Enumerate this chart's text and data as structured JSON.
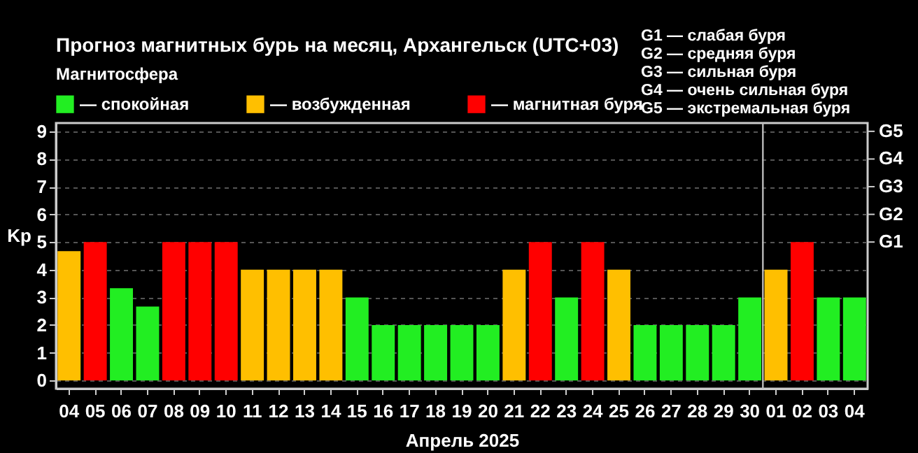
{
  "chart_data": {
    "type": "bar",
    "title": "Прогноз магнитных бурь на месяц, Архангельск (UTC+03)",
    "xlabel": "Апрель 2025",
    "ylabel": "Kp",
    "legend_title": "Магнитосфера",
    "legend": "top left",
    "grid": "y",
    "line_style": "dashed",
    "categories": [
      "04",
      "05",
      "06",
      "07",
      "08",
      "09",
      "10",
      "11",
      "12",
      "13",
      "14",
      "15",
      "16",
      "17",
      "18",
      "19",
      "20",
      "21",
      "22",
      "23",
      "24",
      "25",
      "26",
      "27",
      "28",
      "29",
      "30",
      "01",
      "02",
      "03",
      "04"
    ],
    "series": [
      {
        "name": "— спокойная",
        "color": "#22ee22",
        "values": [
          null,
          null,
          3.33,
          2.67,
          null,
          null,
          null,
          null,
          null,
          null,
          null,
          3,
          2,
          2,
          2,
          2,
          2,
          null,
          null,
          3,
          null,
          null,
          2,
          2,
          2,
          2,
          3,
          null,
          null,
          3,
          3
        ]
      },
      {
        "name": "— возбужденная",
        "color": "#ffbf00",
        "values": [
          4.67,
          null,
          null,
          null,
          null,
          null,
          null,
          4,
          4,
          4,
          4,
          null,
          null,
          null,
          null,
          null,
          null,
          4,
          null,
          null,
          null,
          4,
          null,
          null,
          null,
          null,
          null,
          4,
          null,
          null,
          null
        ]
      },
      {
        "name": "— магнитная буря",
        "color": "#ff0000",
        "values": [
          null,
          5,
          null,
          null,
          5,
          5,
          5,
          null,
          null,
          null,
          null,
          null,
          null,
          null,
          null,
          null,
          null,
          null,
          5,
          null,
          5,
          null,
          null,
          null,
          null,
          null,
          null,
          null,
          5,
          null,
          null
        ]
      }
    ],
    "ylim": [
      -0.3,
      9.3
    ],
    "yticks": [
      0,
      1,
      2,
      3,
      4,
      5,
      6,
      7,
      8,
      9
    ],
    "ref_lines": [
      {
        "axis": "x",
        "value": "01",
        "color": "#bbbbbb"
      },
      {
        "axis": "y",
        "value": 5,
        "label": "G1"
      },
      {
        "axis": "y",
        "value": 6,
        "label": "G2"
      },
      {
        "axis": "y",
        "value": 7,
        "label": "G3"
      },
      {
        "axis": "y",
        "value": 8,
        "label": "G4"
      },
      {
        "axis": "y",
        "value": 9,
        "label": "G5"
      }
    ],
    "annotations": [
      "G1 — слабая буря",
      "G2 — средняя буря",
      "G3 — сильная буря",
      "G4 — очень сильная буря",
      "G5 — экстремальная буря"
    ]
  }
}
